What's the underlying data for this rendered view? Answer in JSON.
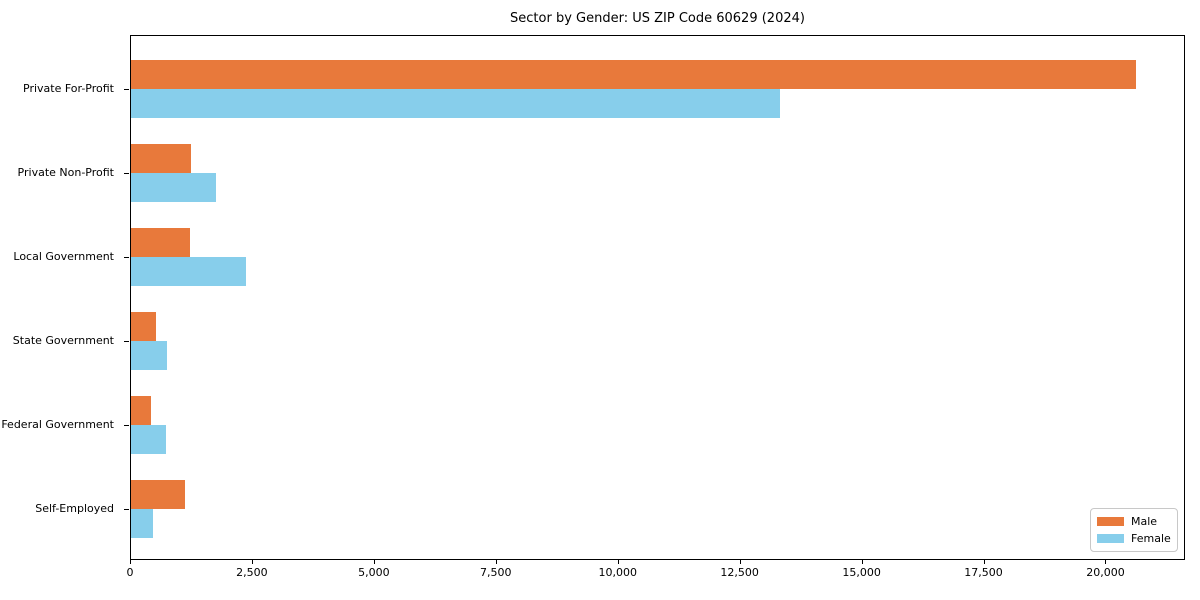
{
  "chart_data": {
    "type": "bar",
    "orientation": "horizontal",
    "title": "Sector by Gender: US ZIP Code 60629 (2024)",
    "categories": [
      "Private For-Profit",
      "Private Non-Profit",
      "Local Government",
      "State Government",
      "Federal Government",
      "Self-Employed"
    ],
    "series": [
      {
        "name": "Male",
        "color": "#E8793B",
        "values": [
          20600,
          1230,
          1210,
          510,
          410,
          1110
        ]
      },
      {
        "name": "Female",
        "color": "#87CEEB",
        "values": [
          13300,
          1750,
          2360,
          740,
          720,
          450
        ]
      }
    ],
    "xlim": [
      0,
      21630
    ],
    "x_ticks": [
      0,
      2500,
      5000,
      7500,
      10000,
      12500,
      15000,
      17500,
      20000
    ],
    "x_tick_labels": [
      "0",
      "2,500",
      "5,000",
      "7,500",
      "10,000",
      "12,500",
      "15,000",
      "17,500",
      "20,000"
    ],
    "xlabel": "",
    "ylabel": "",
    "grid": false,
    "legend": {
      "position": "lower-right",
      "entries": [
        "Male",
        "Female"
      ]
    },
    "background": "#ffffff",
    "spine_color": "#000000"
  }
}
